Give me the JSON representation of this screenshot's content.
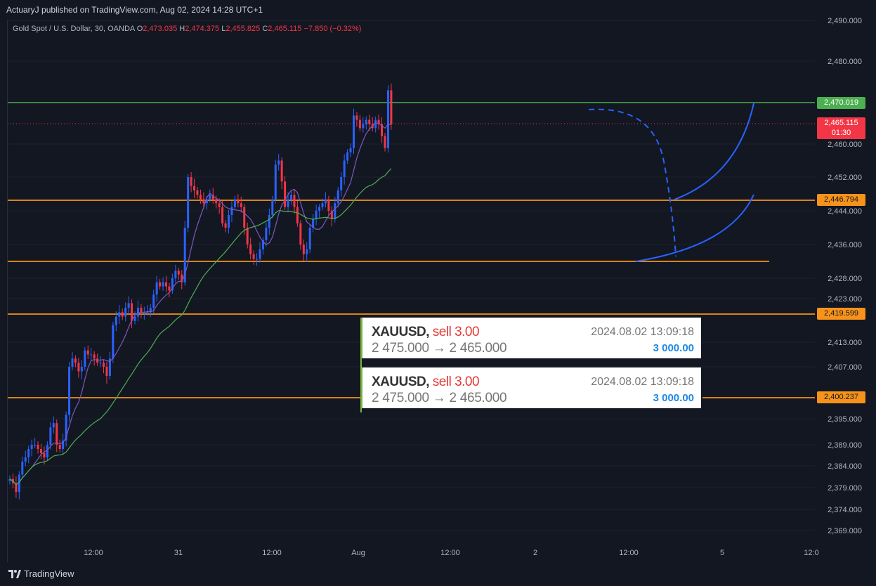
{
  "header": {
    "publisher_text": "ActuaryJ published on TradingView.com, Aug 02, 2024 14:28 UTC+1"
  },
  "legend": {
    "symbol": "Gold Spot / U.S. Dollar, 30, OANDA",
    "open_key": "O",
    "open": "2,473.035",
    "high_key": "H",
    "high": "2,474.375",
    "low_key": "L",
    "low": "2,455.825",
    "close_key": "C",
    "close": "2,465.115",
    "change": "−7.850 (−0.32%)"
  },
  "price_labels": {
    "level_1": "2,470.019",
    "current": "2,465.115",
    "countdown": "01:30",
    "level_2": "2,446.794",
    "level_3": "2,419.599",
    "level_4": "2,400.237"
  },
  "trades": [
    {
      "symbol": "XAUUSD",
      "side": "sell 3.00",
      "prices": "2 475.000 → 2 465.000",
      "time": "2024.08.02 13:09:18",
      "profit": "3 000.00"
    },
    {
      "symbol": "XAUUSD",
      "side": "sell 3.00",
      "prices": "2 475.000 → 2 465.000",
      "time": "2024.08.02 13:09:18",
      "profit": "3 000.00"
    }
  ],
  "brand": {
    "name": "TradingView"
  },
  "colors": {
    "up": "#2962ff",
    "down": "#f23645",
    "support": "#f7931a",
    "resistance": "#4caf50",
    "ma_fast": "#7e57c2",
    "ma_slow": "#4caf50",
    "projection": "#2962ff"
  },
  "chart_data": {
    "type": "candlestick",
    "title": "Gold Spot / U.S. Dollar, 30, OANDA",
    "y_ticks": [
      2490,
      2480,
      2460,
      2452,
      2444,
      2436,
      2428,
      2423,
      2413,
      2407,
      2395,
      2389,
      2384,
      2379,
      2374,
      2369
    ],
    "y_tick_labels": [
      "2,490.000",
      "2,480.000",
      "2,460.000",
      "2,452.000",
      "2,444.000",
      "2,436.000",
      "2,428.000",
      "2,423.000",
      "2,413.000",
      "2,407.000",
      "2,395.000",
      "2,389.000",
      "2,384.000",
      "2,379.000",
      "2,374.000",
      "2,369.000"
    ],
    "x_tick_labels": [
      "12:00",
      "31",
      "12:00",
      "Aug",
      "12:00",
      "2",
      "12:00",
      "5",
      "12:0"
    ],
    "levels": [
      2470.019,
      2446.794,
      2432.5,
      2419.599,
      2400.237
    ],
    "current_price": 2465.115,
    "closes": [
      2381,
      2380,
      2378,
      2382,
      2385,
      2386,
      2388,
      2389,
      2389,
      2388,
      2387,
      2386,
      2389,
      2393,
      2394,
      2389,
      2388,
      2390,
      2396,
      2407,
      2409,
      2408,
      2406,
      2407,
      2411,
      2410,
      2410,
      2409,
      2408,
      2408,
      2407,
      2405,
      2409,
      2417,
      2419,
      2420,
      2419,
      2421,
      2422,
      2418,
      2419,
      2421,
      2420,
      2420,
      2420,
      2421,
      2424,
      2427,
      2426,
      2427,
      2426,
      2425,
      2428,
      2430,
      2429,
      2427,
      2440,
      2452,
      2450,
      2449,
      2448,
      2447,
      2446,
      2447,
      2448,
      2447,
      2446,
      2445,
      2441,
      2440,
      2443,
      2445,
      2447,
      2446,
      2445,
      2440,
      2436,
      2434,
      2433,
      2433,
      2435,
      2437,
      2440,
      2443,
      2447,
      2455,
      2456,
      2451,
      2445,
      2447,
      2448,
      2445,
      2441,
      2436,
      2434,
      2435,
      2440,
      2442,
      2444,
      2445,
      2446,
      2447,
      2444,
      2442,
      2446,
      2449,
      2452,
      2456,
      2458,
      2459,
      2467,
      2466,
      2464,
      2465,
      2466,
      2465,
      2464,
      2466,
      2465,
      2462,
      2459,
      2473,
      2465
    ]
  }
}
